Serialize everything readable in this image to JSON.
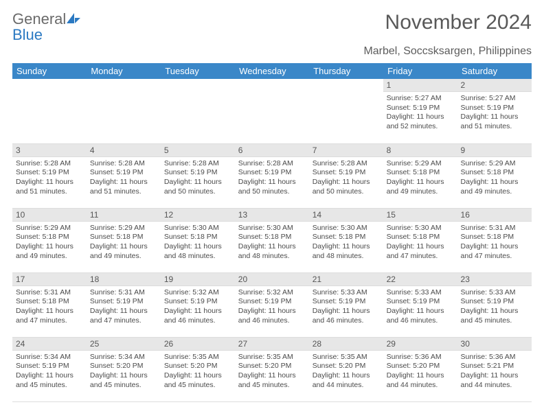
{
  "brand": {
    "word1": "General",
    "word2": "Blue"
  },
  "title": "November 2024",
  "subtitle": "Marbel, Soccsksargen, Philippines",
  "day_headers": [
    "Sunday",
    "Monday",
    "Tuesday",
    "Wednesday",
    "Thursday",
    "Friday",
    "Saturday"
  ],
  "weeks": [
    [
      {
        "blank": true
      },
      {
        "blank": true
      },
      {
        "blank": true
      },
      {
        "blank": true
      },
      {
        "blank": true
      },
      {
        "n": "1",
        "sunrise": "Sunrise: 5:27 AM",
        "sunset": "Sunset: 5:19 PM",
        "day1": "Daylight: 11 hours",
        "day2": "and 52 minutes."
      },
      {
        "n": "2",
        "sunrise": "Sunrise: 5:27 AM",
        "sunset": "Sunset: 5:19 PM",
        "day1": "Daylight: 11 hours",
        "day2": "and 51 minutes."
      }
    ],
    [
      {
        "n": "3",
        "sunrise": "Sunrise: 5:28 AM",
        "sunset": "Sunset: 5:19 PM",
        "day1": "Daylight: 11 hours",
        "day2": "and 51 minutes."
      },
      {
        "n": "4",
        "sunrise": "Sunrise: 5:28 AM",
        "sunset": "Sunset: 5:19 PM",
        "day1": "Daylight: 11 hours",
        "day2": "and 51 minutes."
      },
      {
        "n": "5",
        "sunrise": "Sunrise: 5:28 AM",
        "sunset": "Sunset: 5:19 PM",
        "day1": "Daylight: 11 hours",
        "day2": "and 50 minutes."
      },
      {
        "n": "6",
        "sunrise": "Sunrise: 5:28 AM",
        "sunset": "Sunset: 5:19 PM",
        "day1": "Daylight: 11 hours",
        "day2": "and 50 minutes."
      },
      {
        "n": "7",
        "sunrise": "Sunrise: 5:28 AM",
        "sunset": "Sunset: 5:19 PM",
        "day1": "Daylight: 11 hours",
        "day2": "and 50 minutes."
      },
      {
        "n": "8",
        "sunrise": "Sunrise: 5:29 AM",
        "sunset": "Sunset: 5:18 PM",
        "day1": "Daylight: 11 hours",
        "day2": "and 49 minutes."
      },
      {
        "n": "9",
        "sunrise": "Sunrise: 5:29 AM",
        "sunset": "Sunset: 5:18 PM",
        "day1": "Daylight: 11 hours",
        "day2": "and 49 minutes."
      }
    ],
    [
      {
        "n": "10",
        "sunrise": "Sunrise: 5:29 AM",
        "sunset": "Sunset: 5:18 PM",
        "day1": "Daylight: 11 hours",
        "day2": "and 49 minutes."
      },
      {
        "n": "11",
        "sunrise": "Sunrise: 5:29 AM",
        "sunset": "Sunset: 5:18 PM",
        "day1": "Daylight: 11 hours",
        "day2": "and 49 minutes."
      },
      {
        "n": "12",
        "sunrise": "Sunrise: 5:30 AM",
        "sunset": "Sunset: 5:18 PM",
        "day1": "Daylight: 11 hours",
        "day2": "and 48 minutes."
      },
      {
        "n": "13",
        "sunrise": "Sunrise: 5:30 AM",
        "sunset": "Sunset: 5:18 PM",
        "day1": "Daylight: 11 hours",
        "day2": "and 48 minutes."
      },
      {
        "n": "14",
        "sunrise": "Sunrise: 5:30 AM",
        "sunset": "Sunset: 5:18 PM",
        "day1": "Daylight: 11 hours",
        "day2": "and 48 minutes."
      },
      {
        "n": "15",
        "sunrise": "Sunrise: 5:30 AM",
        "sunset": "Sunset: 5:18 PM",
        "day1": "Daylight: 11 hours",
        "day2": "and 47 minutes."
      },
      {
        "n": "16",
        "sunrise": "Sunrise: 5:31 AM",
        "sunset": "Sunset: 5:18 PM",
        "day1": "Daylight: 11 hours",
        "day2": "and 47 minutes."
      }
    ],
    [
      {
        "n": "17",
        "sunrise": "Sunrise: 5:31 AM",
        "sunset": "Sunset: 5:18 PM",
        "day1": "Daylight: 11 hours",
        "day2": "and 47 minutes."
      },
      {
        "n": "18",
        "sunrise": "Sunrise: 5:31 AM",
        "sunset": "Sunset: 5:19 PM",
        "day1": "Daylight: 11 hours",
        "day2": "and 47 minutes."
      },
      {
        "n": "19",
        "sunrise": "Sunrise: 5:32 AM",
        "sunset": "Sunset: 5:19 PM",
        "day1": "Daylight: 11 hours",
        "day2": "and 46 minutes."
      },
      {
        "n": "20",
        "sunrise": "Sunrise: 5:32 AM",
        "sunset": "Sunset: 5:19 PM",
        "day1": "Daylight: 11 hours",
        "day2": "and 46 minutes."
      },
      {
        "n": "21",
        "sunrise": "Sunrise: 5:33 AM",
        "sunset": "Sunset: 5:19 PM",
        "day1": "Daylight: 11 hours",
        "day2": "and 46 minutes."
      },
      {
        "n": "22",
        "sunrise": "Sunrise: 5:33 AM",
        "sunset": "Sunset: 5:19 PM",
        "day1": "Daylight: 11 hours",
        "day2": "and 46 minutes."
      },
      {
        "n": "23",
        "sunrise": "Sunrise: 5:33 AM",
        "sunset": "Sunset: 5:19 PM",
        "day1": "Daylight: 11 hours",
        "day2": "and 45 minutes."
      }
    ],
    [
      {
        "n": "24",
        "sunrise": "Sunrise: 5:34 AM",
        "sunset": "Sunset: 5:19 PM",
        "day1": "Daylight: 11 hours",
        "day2": "and 45 minutes."
      },
      {
        "n": "25",
        "sunrise": "Sunrise: 5:34 AM",
        "sunset": "Sunset: 5:20 PM",
        "day1": "Daylight: 11 hours",
        "day2": "and 45 minutes."
      },
      {
        "n": "26",
        "sunrise": "Sunrise: 5:35 AM",
        "sunset": "Sunset: 5:20 PM",
        "day1": "Daylight: 11 hours",
        "day2": "and 45 minutes."
      },
      {
        "n": "27",
        "sunrise": "Sunrise: 5:35 AM",
        "sunset": "Sunset: 5:20 PM",
        "day1": "Daylight: 11 hours",
        "day2": "and 45 minutes."
      },
      {
        "n": "28",
        "sunrise": "Sunrise: 5:35 AM",
        "sunset": "Sunset: 5:20 PM",
        "day1": "Daylight: 11 hours",
        "day2": "and 44 minutes."
      },
      {
        "n": "29",
        "sunrise": "Sunrise: 5:36 AM",
        "sunset": "Sunset: 5:20 PM",
        "day1": "Daylight: 11 hours",
        "day2": "and 44 minutes."
      },
      {
        "n": "30",
        "sunrise": "Sunrise: 5:36 AM",
        "sunset": "Sunset: 5:21 PM",
        "day1": "Daylight: 11 hours",
        "day2": "and 44 minutes."
      }
    ]
  ],
  "colors": {
    "header_bg": "#3a87c8",
    "header_fg": "#ffffff",
    "daynum_bg": "#e7e7e7",
    "text": "#4a4a4a",
    "title": "#595959",
    "brand_blue": "#2b79c2",
    "brand_gray": "#6a6a6a"
  }
}
